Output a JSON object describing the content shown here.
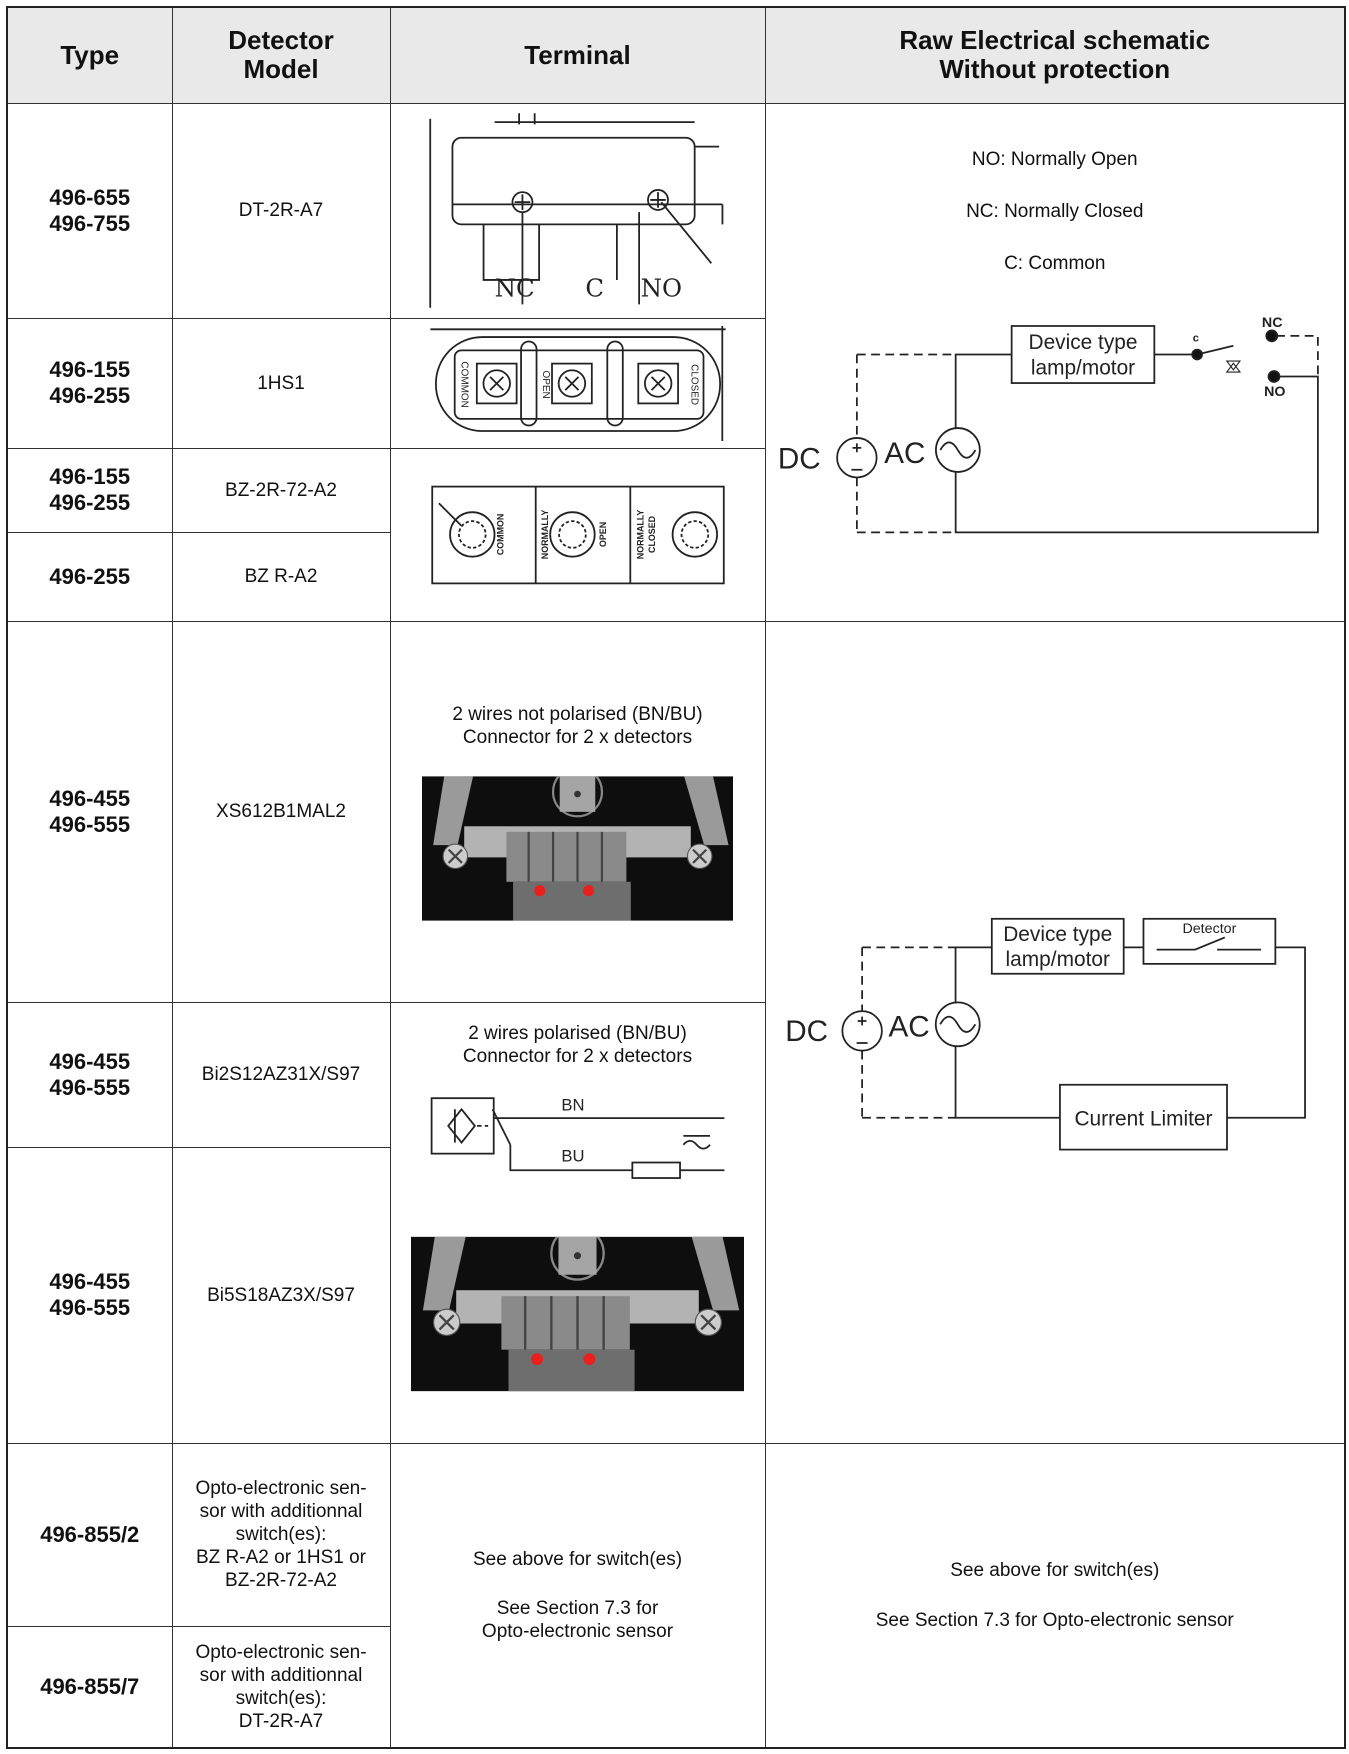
{
  "header": {
    "type": "Type",
    "model": [
      "Detector",
      "Model"
    ],
    "terminal": "Terminal",
    "schematic": [
      "Raw Electrical schematic",
      "Without protection"
    ]
  },
  "rows": [
    {
      "type": [
        "496-655",
        "496-755"
      ],
      "model": [
        "DT-2R-A7"
      ]
    },
    {
      "type": [
        "496-155",
        "496-255"
      ],
      "model": [
        "1HS1"
      ]
    },
    {
      "type": [
        "496-155",
        "496-255"
      ],
      "model": [
        "BZ-2R-72-A2"
      ]
    },
    {
      "type": [
        "496-255"
      ],
      "model": [
        "BZ R-A2"
      ]
    },
    {
      "type": [
        "496-455",
        "496-555"
      ],
      "model": [
        "XS612B1MAL2"
      ]
    },
    {
      "type": [
        "496-455",
        "496-555"
      ],
      "model": [
        "Bi2S12AZ31X/S97"
      ]
    },
    {
      "type": [
        "496-455",
        "496-555"
      ],
      "model": [
        "Bi5S18AZ3X/S97"
      ]
    },
    {
      "type": [
        "496-855/2"
      ],
      "model": [
        "Opto-electronic sen-",
        "sor with additionnal",
        "switch(es):",
        "BZ R-A2 or 1HS1 or",
        "BZ-2R-72-A2"
      ]
    },
    {
      "type": [
        "496-855/7"
      ],
      "model": [
        "Opto-electronic sen-",
        "sor with additionnal",
        "switch(es):",
        "DT-2R-A7"
      ]
    }
  ],
  "terminals": {
    "dt": [
      "NC",
      "C",
      "NO"
    ],
    "hs": [
      "COMMON",
      "OPEN",
      "CLOSED"
    ],
    "bz": [
      "COMMON",
      "NORMALLY",
      "OPEN",
      "NORMALLY",
      "CLOSED"
    ],
    "xs": [
      "2 wires not polarised (BN/BU)",
      "Connector for 2 x detectors"
    ],
    "bi": {
      "text": [
        "2 wires polarised (BN/BU)",
        "Connector for 2 x detectors"
      ],
      "wires": [
        "BN",
        "BU"
      ]
    },
    "opto": {
      "first": "See above for switch(es)",
      "second": [
        "See Section 7.3 for",
        "Opto-electronic sensor"
      ]
    }
  },
  "schematics": {
    "switch": {
      "legend": [
        "NO: Normally Open",
        "NC: Normally Closed",
        "C: Common"
      ],
      "device": [
        "Device type",
        "lamp/motor"
      ],
      "dc": "DC",
      "ac": "AC",
      "nc": "NC",
      "c": "c",
      "no": "NO"
    },
    "detector": {
      "device": [
        "Device type",
        "lamp/motor"
      ],
      "detector": "Detector",
      "dc": "DC",
      "ac": "AC",
      "limiter": "Current Limiter"
    },
    "opto": [
      "See above for switch(es)",
      "See Section 7.3 for Opto-electronic sensor"
    ]
  }
}
